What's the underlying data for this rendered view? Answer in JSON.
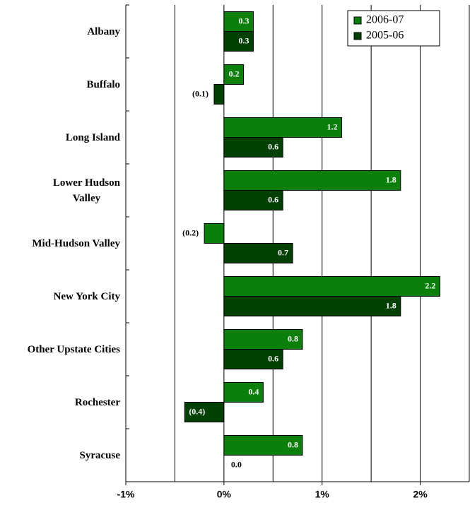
{
  "chart_data": {
    "type": "hbar",
    "categories": [
      "Albany",
      "Buffalo",
      "Long Island",
      "Lower Hudson\nValley",
      "Mid-Hudson Valley",
      "New York City",
      "Other Upstate Cities",
      "Rochester",
      "Syracuse"
    ],
    "series": [
      {
        "name": "2006-07",
        "color": "#0a800a",
        "values": [
          0.3,
          0.2,
          1.2,
          1.8,
          -0.2,
          2.2,
          0.8,
          0.4,
          0.8
        ],
        "value_labels": [
          "0.3",
          "0.2",
          "1.2",
          "1.8",
          "(0.2)",
          "2.2",
          "0.8",
          "0.4",
          "0.8"
        ]
      },
      {
        "name": "2005-06",
        "color": "#004000",
        "values": [
          0.3,
          -0.1,
          0.6,
          0.6,
          0.7,
          1.8,
          0.6,
          -0.4,
          0.0
        ],
        "value_labels": [
          "0.3",
          "(0.1)",
          "0.6",
          "0.6",
          "0.7",
          "1.8",
          "0.6",
          "(0.4)",
          "0.0"
        ]
      }
    ],
    "xlim": [
      -1,
      2.5
    ],
    "xticks": [
      {
        "value": -1,
        "label": "-1%"
      },
      {
        "value": 0,
        "label": "0%"
      },
      {
        "value": 1,
        "label": "1%"
      },
      {
        "value": 2,
        "label": "2%"
      }
    ],
    "xgrid": [
      -1,
      -0.5,
      0,
      0.5,
      1,
      1.5,
      2,
      2.5
    ],
    "legend": "top-right"
  }
}
